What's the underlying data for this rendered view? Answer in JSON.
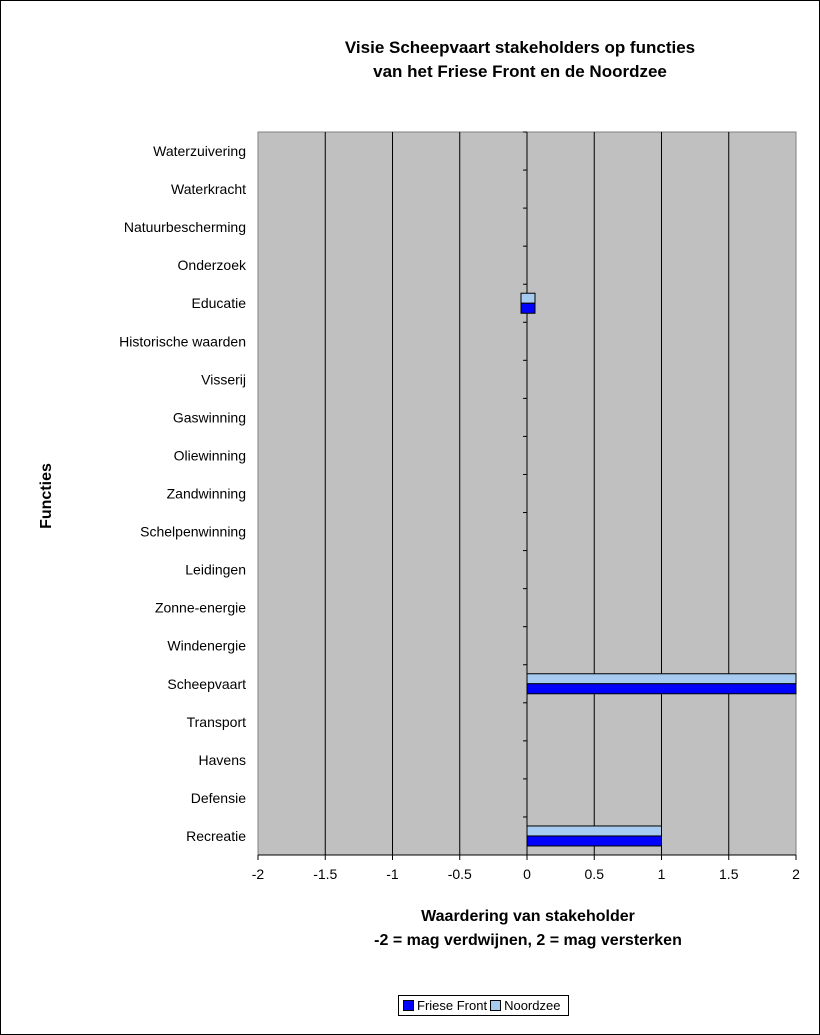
{
  "chart_data": {
    "type": "bar",
    "orientation": "horizontal",
    "title": [
      "Visie Scheepvaart stakeholders  op functies",
      "van het Friese Front en de Noordzee"
    ],
    "xlabel": [
      "Waardering van stakeholder",
      "-2 = mag verdwijnen, 2 = mag versterken"
    ],
    "ylabel": "Functies",
    "xlim": [
      -2,
      2
    ],
    "xticks": [
      "-2",
      "-1.5",
      "-1",
      "-0.5",
      "0",
      "0.5",
      "1",
      "1.5",
      "2"
    ],
    "grid": "vertical",
    "legend_position": "bottom",
    "categories": [
      "Waterzuivering",
      "Waterkracht",
      "Natuurbescherming",
      "Onderzoek",
      "Educatie",
      "Historische waarden",
      "Visserij",
      "Gaswinning",
      "Oliewinning",
      "Zandwinning",
      "Schelpenwinning",
      "Leidingen",
      "Zonne-energie",
      "Windenergie",
      "Scheepvaart",
      "Transport",
      "Havens",
      "Defensie",
      "Recreatie"
    ],
    "series": [
      {
        "name": "Friese Front",
        "color": "#0000ff",
        "values": [
          0,
          0,
          0,
          0,
          0.05,
          0,
          0,
          0,
          0,
          0,
          0,
          0,
          0,
          0,
          2,
          0,
          0,
          0,
          1
        ]
      },
      {
        "name": "Noordzee",
        "color": "#a6caf0",
        "values": [
          0,
          0,
          0,
          0,
          0.05,
          0,
          0,
          0,
          0,
          0,
          0,
          0,
          0,
          0,
          2,
          0,
          0,
          0,
          1
        ]
      }
    ],
    "plot_background": "#c0c0c0"
  }
}
